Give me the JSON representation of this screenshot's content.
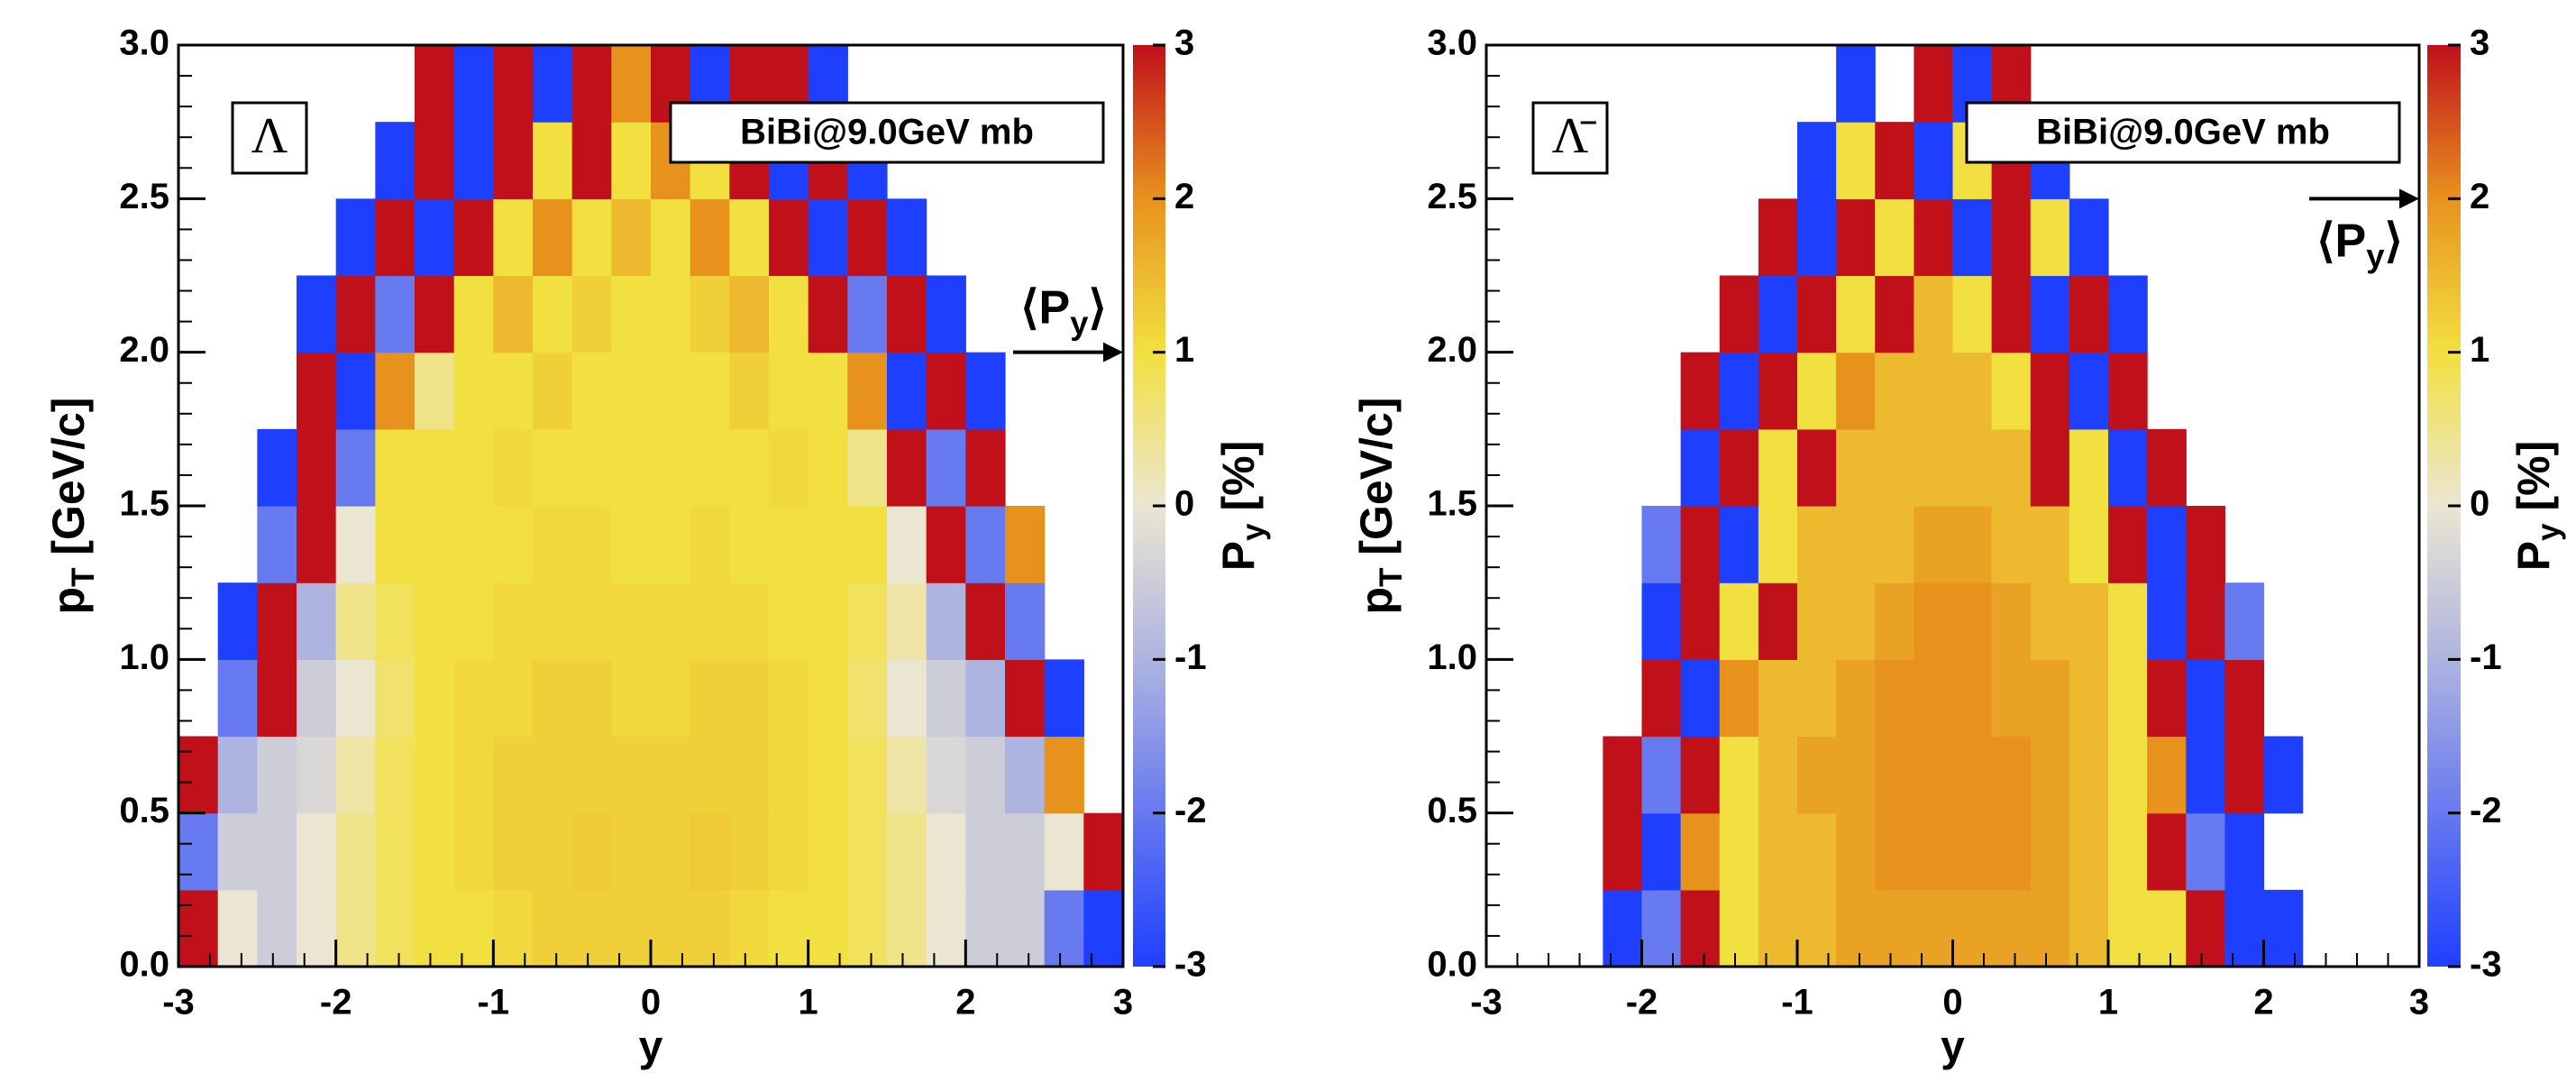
{
  "chart_data": [
    {
      "type": "heatmap",
      "label": "Λ",
      "legend_text": "BiBi@9.0GeV mb",
      "xlabel": "y",
      "ylabel": {
        "main": "p",
        "sub": "T",
        "rest": " [GeV/c]"
      },
      "zlabel": {
        "main": "P",
        "sub": "y",
        "rest": " [%]"
      },
      "annotation": {
        "main": "⟨P",
        "sub": "y",
        "rest": "⟩",
        "value": 1
      },
      "xlim": [
        -3,
        3
      ],
      "xticks": [
        -3,
        -2,
        -1,
        0,
        1,
        2,
        3
      ],
      "ylim": [
        0,
        3
      ],
      "yticks": [
        {
          "value": 0,
          "label": "0.0"
        },
        {
          "value": 0.5,
          "label": "0.5"
        },
        {
          "value": 1,
          "label": "1.0"
        },
        {
          "value": 1.5,
          "label": "1.5"
        },
        {
          "value": 2,
          "label": "2.0"
        },
        {
          "value": 2.5,
          "label": "2.5"
        },
        {
          "value": 3,
          "label": "3.0"
        }
      ],
      "zlim": [
        -3,
        3
      ],
      "zticks": [
        -3,
        -2,
        -1,
        0,
        1,
        2,
        3
      ],
      "colorscale": [
        {
          "value": -3,
          "color": "#1f3fff"
        },
        {
          "value": -1,
          "color": "#aeb4e0"
        },
        {
          "value": 0,
          "color": "#ebe6d2"
        },
        {
          "value": 1,
          "color": "#f2e040"
        },
        {
          "value": 2,
          "color": "#e8921e"
        },
        {
          "value": 3,
          "color": "#c0101a"
        }
      ],
      "z": [
        [
          3,
          0,
          -0.5,
          0,
          0.5,
          0.8,
          1,
          1,
          1.1,
          1.2,
          1.2,
          1.2,
          1.2,
          1.2,
          1.1,
          1,
          1,
          0.8,
          0.5,
          0,
          -0.5,
          -0.5,
          -2,
          -3
        ],
        [
          -2,
          -0.5,
          -0.5,
          0,
          0.5,
          0.8,
          1,
          1.1,
          1.2,
          1.2,
          1.3,
          1.2,
          1.2,
          1.3,
          1.2,
          1.1,
          1,
          0.8,
          0.5,
          0,
          -0.5,
          -0.5,
          0,
          3
        ],
        [
          3,
          -1,
          -0.5,
          -0.3,
          0.3,
          0.8,
          1,
          1.1,
          1.2,
          1.2,
          1.2,
          1.2,
          1.2,
          1.2,
          1.2,
          1.1,
          1,
          0.8,
          0.3,
          -0.3,
          -0.5,
          -1,
          2,
          null
        ],
        [
          null,
          -2,
          3,
          -0.5,
          0,
          0.7,
          1,
          1.1,
          1.1,
          1.2,
          1.2,
          1.1,
          1.1,
          1.2,
          1.2,
          1.1,
          1,
          0.7,
          0,
          -0.5,
          -1,
          3,
          -3,
          null
        ],
        [
          null,
          -3,
          3,
          -1,
          0.5,
          0.8,
          1,
          1,
          1.1,
          1.1,
          1.1,
          1.1,
          1.1,
          1.1,
          1.1,
          1,
          1,
          0.8,
          0.3,
          -1,
          3,
          -2,
          null,
          null
        ],
        [
          null,
          null,
          -2,
          3,
          0,
          1,
          1,
          1,
          1,
          1.1,
          1.1,
          1,
          1,
          1.1,
          1,
          1,
          1,
          1,
          0,
          3,
          -2,
          2,
          null,
          null
        ],
        [
          null,
          null,
          -3,
          3,
          -2,
          1,
          1,
          1,
          1.1,
          1,
          1,
          1,
          1,
          1,
          1,
          1.1,
          1,
          0.5,
          3,
          -2,
          3,
          null,
          null,
          null
        ],
        [
          null,
          null,
          null,
          3,
          -3,
          2,
          0.5,
          1,
          1,
          1.2,
          1,
          1,
          1,
          1,
          1.2,
          1,
          1,
          2,
          -3,
          3,
          -3,
          null,
          null,
          null
        ],
        [
          null,
          null,
          null,
          -3,
          3,
          -2,
          3,
          1,
          1.5,
          1,
          1.2,
          1,
          1,
          1.2,
          1.5,
          1,
          3,
          -2,
          3,
          -3,
          null,
          null,
          null,
          null
        ],
        [
          null,
          null,
          null,
          null,
          -3,
          3,
          -3,
          3,
          1,
          2,
          1,
          1.5,
          1,
          2,
          1,
          3,
          -3,
          3,
          -3,
          null,
          null,
          null,
          null,
          null
        ],
        [
          null,
          null,
          null,
          null,
          null,
          -3,
          3,
          -3,
          3,
          1,
          3,
          1,
          2,
          1,
          3,
          -3,
          3,
          -3,
          null,
          null,
          null,
          null,
          null,
          null
        ],
        [
          null,
          null,
          null,
          null,
          null,
          null,
          3,
          -3,
          3,
          -3,
          3,
          2,
          3,
          -3,
          3,
          3,
          -3,
          null,
          null,
          null,
          null,
          null,
          null,
          null
        ]
      ]
    },
    {
      "type": "heatmap",
      "label": "Λ̄",
      "legend_text": "BiBi@9.0GeV mb",
      "xlabel": "y",
      "ylabel": {
        "main": "p",
        "sub": "T",
        "rest": " [GeV/c]"
      },
      "zlabel": {
        "main": "P",
        "sub": "y",
        "rest": " [%]"
      },
      "annotation": {
        "main": "⟨P",
        "sub": "y",
        "rest": "⟩",
        "value": 2
      },
      "xlim": [
        -3,
        3
      ],
      "xticks": [
        -3,
        -2,
        -1,
        0,
        1,
        2,
        3
      ],
      "ylim": [
        0,
        3
      ],
      "yticks": [
        {
          "value": 0,
          "label": "0.0"
        },
        {
          "value": 0.5,
          "label": "0.5"
        },
        {
          "value": 1,
          "label": "1.0"
        },
        {
          "value": 1.5,
          "label": "1.5"
        },
        {
          "value": 2,
          "label": "2.0"
        },
        {
          "value": 2.5,
          "label": "2.5"
        },
        {
          "value": 3,
          "label": "3.0"
        }
      ],
      "zlim": [
        -3,
        3
      ],
      "zticks": [
        -3,
        -2,
        -1,
        0,
        1,
        2,
        3
      ],
      "colorscale": [
        {
          "value": -3,
          "color": "#1f3fff"
        },
        {
          "value": -1,
          "color": "#aeb4e0"
        },
        {
          "value": 0,
          "color": "#ebe6d2"
        },
        {
          "value": 1,
          "color": "#f2e040"
        },
        {
          "value": 2,
          "color": "#e8921e"
        },
        {
          "value": 3,
          "color": "#c0101a"
        }
      ],
      "z": [
        [
          null,
          null,
          null,
          -3,
          -2,
          3,
          1,
          1.5,
          1.5,
          1.8,
          1.8,
          1.8,
          1.8,
          1.8,
          1.8,
          1.5,
          1,
          1,
          3,
          -3,
          -3,
          null,
          null,
          null
        ],
        [
          null,
          null,
          null,
          3,
          -3,
          2,
          1,
          1.5,
          1.5,
          1.8,
          2,
          2,
          2,
          2,
          1.8,
          1.5,
          1,
          3,
          -2,
          -3,
          null,
          null,
          null,
          null
        ],
        [
          null,
          null,
          null,
          3,
          -2,
          3,
          1,
          1.5,
          1.8,
          1.8,
          2,
          2,
          2,
          2,
          1.8,
          1.5,
          1,
          2,
          -3,
          3,
          -3,
          null,
          null,
          null
        ],
        [
          null,
          null,
          null,
          null,
          3,
          -3,
          2,
          1.5,
          1.5,
          1.8,
          2,
          2,
          2,
          1.8,
          1.8,
          1.5,
          1,
          3,
          -3,
          3,
          null,
          null,
          null,
          null
        ],
        [
          null,
          null,
          null,
          null,
          -3,
          3,
          1,
          3,
          1.5,
          1.5,
          1.8,
          2,
          2,
          1.8,
          1.5,
          1.5,
          1,
          -3,
          3,
          -2,
          null,
          null,
          null,
          null
        ],
        [
          null,
          null,
          null,
          null,
          -2,
          3,
          -3,
          1,
          1.5,
          1.5,
          1.5,
          1.8,
          1.8,
          1.5,
          1.5,
          1,
          3,
          -3,
          3,
          null,
          null,
          null,
          null,
          null
        ],
        [
          null,
          null,
          null,
          null,
          null,
          -3,
          3,
          1,
          3,
          1.5,
          1.5,
          1.5,
          1.5,
          1.5,
          3,
          1,
          -3,
          3,
          null,
          null,
          null,
          null,
          null,
          null
        ],
        [
          null,
          null,
          null,
          null,
          null,
          3,
          -3,
          3,
          1,
          2,
          1.5,
          1.5,
          1.5,
          1,
          3,
          -3,
          3,
          null,
          null,
          null,
          null,
          null,
          null,
          null
        ],
        [
          null,
          null,
          null,
          null,
          null,
          null,
          3,
          -3,
          3,
          1,
          3,
          1.5,
          1,
          3,
          -3,
          3,
          -3,
          null,
          null,
          null,
          null,
          null,
          null,
          null
        ],
        [
          null,
          null,
          null,
          null,
          null,
          null,
          null,
          3,
          -3,
          3,
          1,
          3,
          -3,
          3,
          1,
          -3,
          null,
          null,
          null,
          null,
          null,
          null,
          null,
          null
        ],
        [
          null,
          null,
          null,
          null,
          null,
          null,
          null,
          null,
          -3,
          1,
          3,
          -3,
          1,
          3,
          -3,
          null,
          null,
          null,
          null,
          null,
          null,
          null,
          null,
          null
        ],
        [
          null,
          null,
          null,
          null,
          null,
          null,
          null,
          null,
          null,
          -3,
          null,
          3,
          -3,
          3,
          null,
          null,
          null,
          null,
          null,
          null,
          null,
          null,
          null,
          null
        ]
      ]
    }
  ]
}
